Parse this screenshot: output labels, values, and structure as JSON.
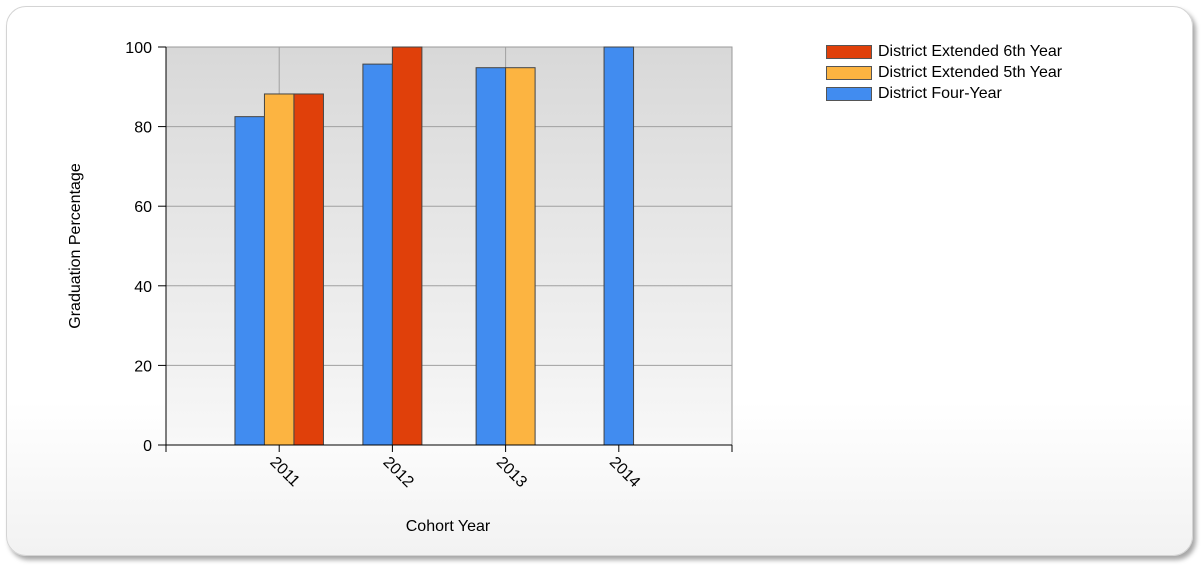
{
  "chart_data": {
    "type": "bar",
    "xlabel": "Cohort Year",
    "ylabel": "Graduation Percentage",
    "categories": [
      "2011",
      "2012",
      "2013",
      "2014"
    ],
    "ylim": [
      0,
      100
    ],
    "yticks": [
      "0",
      "20",
      "40",
      "60",
      "80",
      "100"
    ],
    "grid": true,
    "legend_position": "top-right",
    "series": [
      {
        "name": "District Four-Year",
        "color": "#418cf0",
        "values": [
          82.5,
          95.7,
          94.8,
          100
        ]
      },
      {
        "name": "District Extended 5th Year",
        "color": "#fcb441",
        "values": [
          88.2,
          null,
          94.8,
          null
        ]
      },
      {
        "name": "District Extended 6th Year",
        "color": "#e0400a",
        "values": [
          88.2,
          100,
          null,
          null
        ]
      }
    ],
    "legend_order": [
      2,
      1,
      0
    ]
  }
}
